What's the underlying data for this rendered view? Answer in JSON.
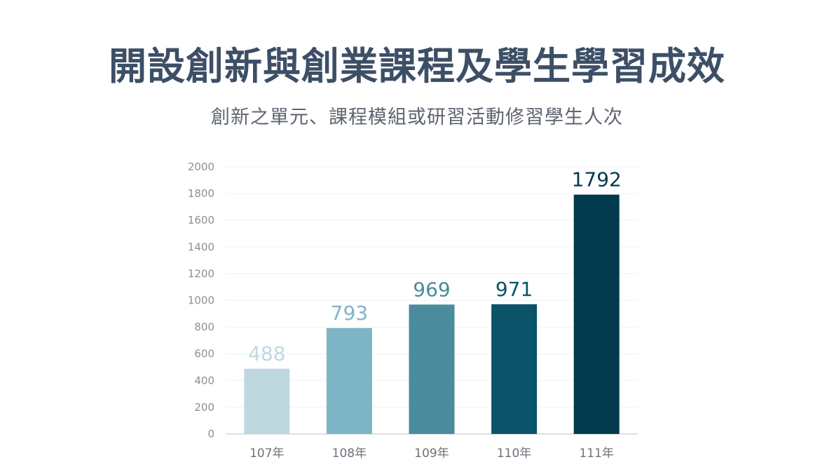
{
  "title": "開設創新與創業課程及學生學習成效",
  "subtitle": "創新之單元、課程模組或研習活動修習學生人次",
  "chart_data": {
    "type": "bar",
    "title": "開設創新與創業課程及學生學習成效",
    "subtitle": "創新之單元、課程模組或研習活動修習學生人次",
    "xlabel": "",
    "ylabel": "",
    "categories": [
      "107年",
      "108年",
      "109年",
      "110年",
      "111年"
    ],
    "values": [
      488,
      793,
      969,
      971,
      1792
    ],
    "data_labels": [
      "488",
      "793",
      "969",
      "971",
      "1792"
    ],
    "bar_colors": [
      "#bfd8e0",
      "#7eb5c5",
      "#4a8b9c",
      "#0a5369",
      "#033a4d"
    ],
    "label_colors": [
      "#bfd8e0",
      "#7eb5c5",
      "#4a8b9c",
      "#0a5369",
      "#033a4d"
    ],
    "ylim": [
      0,
      2000
    ],
    "yticks": [
      0,
      200,
      400,
      600,
      800,
      1000,
      1200,
      1400,
      1600,
      1800,
      2000
    ],
    "grid": true,
    "legend": "none"
  }
}
